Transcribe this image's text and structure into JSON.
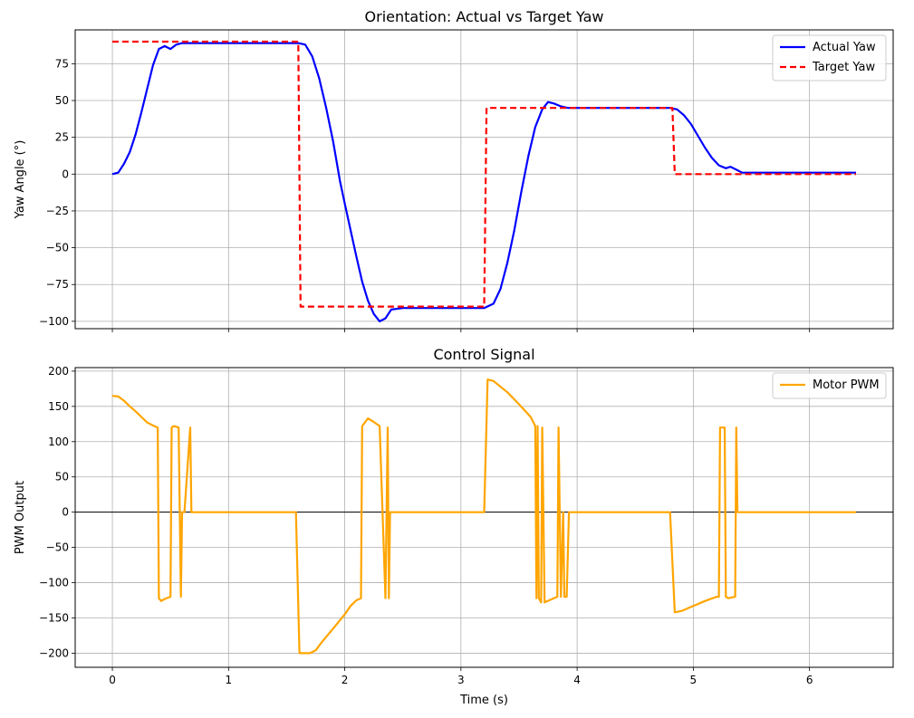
{
  "chart_data": [
    {
      "type": "line",
      "title": "Orientation: Actual vs Target Yaw",
      "xlabel": "",
      "ylabel": "Yaw Angle (°)",
      "xlim": [
        -0.32,
        6.72
      ],
      "ylim": [
        -105,
        98
      ],
      "xticks": [
        0,
        1,
        2,
        3,
        4,
        5,
        6
      ],
      "yticks": [
        -100,
        -75,
        -50,
        -25,
        0,
        25,
        50,
        75
      ],
      "show_xtick_labels": false,
      "grid": true,
      "legend": "top-right",
      "series": [
        {
          "name": "Actual Yaw",
          "color": "#0000ff",
          "style": "solid",
          "x": [
            0,
            0.05,
            0.1,
            0.15,
            0.2,
            0.25,
            0.3,
            0.35,
            0.4,
            0.45,
            0.5,
            0.55,
            0.6,
            0.65,
            0.7,
            0.8,
            1.0,
            1.2,
            1.4,
            1.6,
            1.66,
            1.72,
            1.78,
            1.84,
            1.9,
            1.96,
            2.0,
            2.05,
            2.1,
            2.15,
            2.2,
            2.25,
            2.3,
            2.35,
            2.4,
            2.5,
            2.7,
            2.9,
            3.1,
            3.2,
            3.28,
            3.34,
            3.4,
            3.46,
            3.52,
            3.58,
            3.64,
            3.7,
            3.75,
            3.8,
            3.86,
            3.92,
            4.0,
            4.2,
            4.5,
            4.8,
            4.86,
            4.92,
            4.98,
            5.04,
            5.1,
            5.16,
            5.22,
            5.28,
            5.32,
            5.37,
            5.42,
            5.5,
            5.8,
            6.1,
            6.4
          ],
          "y": [
            0,
            1,
            7,
            15,
            27,
            42,
            58,
            74,
            85,
            87,
            85,
            88,
            89,
            89,
            89,
            89,
            89,
            89,
            89,
            89,
            88,
            80,
            65,
            45,
            22,
            -5,
            -20,
            -38,
            -56,
            -73,
            -86,
            -95,
            -100,
            -98,
            -92,
            -91,
            -91,
            -91,
            -91,
            -91,
            -88,
            -78,
            -60,
            -38,
            -12,
            12,
            32,
            44,
            49,
            48,
            46,
            45,
            45,
            45,
            45,
            45,
            44,
            40,
            34,
            26,
            18,
            11,
            6,
            4,
            5,
            3,
            1,
            1,
            1,
            1,
            1
          ]
        },
        {
          "name": "Target Yaw",
          "color": "#ff0000",
          "style": "dashed",
          "x": [
            0,
            1.6,
            1.62,
            3.2,
            3.22,
            4.82,
            4.84,
            6.4
          ],
          "y": [
            90,
            90,
            -90,
            -90,
            45,
            45,
            0,
            0
          ]
        }
      ]
    },
    {
      "type": "line",
      "title": "Control Signal",
      "xlabel": "Time (s)",
      "ylabel": "PWM Output",
      "xlim": [
        -0.32,
        6.72
      ],
      "ylim": [
        -220,
        205
      ],
      "xticks": [
        0,
        1,
        2,
        3,
        4,
        5,
        6
      ],
      "yticks": [
        -200,
        -150,
        -100,
        -50,
        0,
        50,
        100,
        150,
        200
      ],
      "show_xtick_labels": true,
      "grid": true,
      "zero_line": true,
      "legend": "top-right",
      "series": [
        {
          "name": "Motor PWM",
          "color": "#ffa500",
          "style": "solid",
          "x": [
            0,
            0.05,
            0.1,
            0.15,
            0.2,
            0.25,
            0.3,
            0.35,
            0.39,
            0.4,
            0.42,
            0.45,
            0.5,
            0.51,
            0.53,
            0.57,
            0.59,
            0.6,
            0.62,
            0.67,
            0.68,
            0.69,
            0.7,
            0.9,
            1.2,
            1.4,
            1.58,
            1.61,
            1.7,
            1.75,
            1.8,
            1.9,
            2.0,
            2.05,
            2.1,
            2.14,
            2.15,
            2.2,
            2.25,
            2.3,
            2.35,
            2.37,
            2.38,
            2.39,
            2.4,
            2.42,
            2.5,
            3.0,
            3.2,
            3.23,
            3.28,
            3.4,
            3.5,
            3.6,
            3.64,
            3.65,
            3.66,
            3.67,
            3.69,
            3.7,
            3.72,
            3.8,
            3.83,
            3.84,
            3.86,
            3.88,
            3.89,
            3.91,
            3.93,
            3.94,
            4.0,
            4.5,
            4.8,
            4.84,
            4.9,
            5.0,
            5.1,
            5.2,
            5.22,
            5.23,
            5.27,
            5.28,
            5.3,
            5.36,
            5.37,
            5.38,
            5.4,
            5.42,
            5.6,
            6.0,
            6.4
          ],
          "y": [
            165,
            164,
            158,
            150,
            143,
            135,
            127,
            123,
            120,
            -122,
            -126,
            -123,
            -120,
            120,
            122,
            120,
            -120,
            0,
            0,
            120,
            0,
            0,
            0,
            0,
            0,
            0,
            0,
            -200,
            -200,
            -196,
            -185,
            -165,
            -145,
            -133,
            -125,
            -122,
            122,
            133,
            128,
            122,
            -122,
            120,
            -122,
            0,
            0,
            0,
            0,
            0,
            0,
            188,
            186,
            170,
            153,
            135,
            122,
            -122,
            122,
            -122,
            -128,
            120,
            -128,
            -122,
            -120,
            120,
            -120,
            0,
            -120,
            -120,
            0,
            0,
            0,
            0,
            0,
            -142,
            -140,
            -133,
            -126,
            -120,
            -120,
            120,
            120,
            -120,
            -122,
            -120,
            120,
            0,
            0,
            0,
            0,
            0,
            0
          ]
        }
      ]
    }
  ]
}
